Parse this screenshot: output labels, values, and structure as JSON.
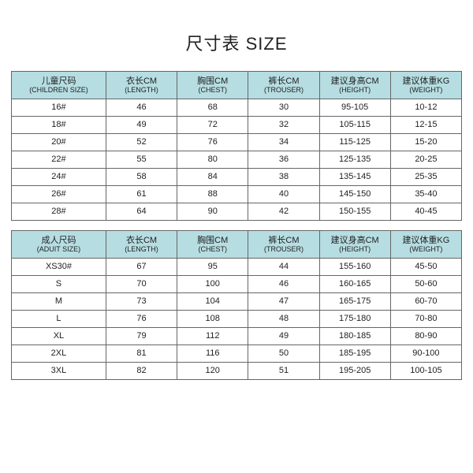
{
  "title": "尺寸表 SIZE",
  "header_bg": "#b6dde2",
  "border_color": "#666666",
  "columns": [
    {
      "cn": "儿童尺码",
      "en": "(CHILDREN SIZE)"
    },
    {
      "cn": "衣长CM",
      "en": "(LENGTH)"
    },
    {
      "cn": "胸围CM",
      "en": "(CHEST)"
    },
    {
      "cn": "裤长CM",
      "en": "(TROUSER)"
    },
    {
      "cn": "建议身高CM",
      "en": "(HEIGHT)"
    },
    {
      "cn": "建议体重KG",
      "en": "(WEIGHT)"
    }
  ],
  "columns2": [
    {
      "cn": "成人尺码",
      "en": "(ADUIT SIZE)"
    },
    {
      "cn": "衣长CM",
      "en": "(LENGTH)"
    },
    {
      "cn": "胸围CM",
      "en": "(CHEST)"
    },
    {
      "cn": "裤长CM",
      "en": "(TROUSER)"
    },
    {
      "cn": "建议身高CM",
      "en": "(HEIGHT)"
    },
    {
      "cn": "建议体重KG",
      "en": "(WEIGHT)"
    }
  ],
  "children_rows": [
    [
      "16#",
      "46",
      "68",
      "30",
      "95-105",
      "10-12"
    ],
    [
      "18#",
      "49",
      "72",
      "32",
      "105-115",
      "12-15"
    ],
    [
      "20#",
      "52",
      "76",
      "34",
      "115-125",
      "15-20"
    ],
    [
      "22#",
      "55",
      "80",
      "36",
      "125-135",
      "20-25"
    ],
    [
      "24#",
      "58",
      "84",
      "38",
      "135-145",
      "25-35"
    ],
    [
      "26#",
      "61",
      "88",
      "40",
      "145-150",
      "35-40"
    ],
    [
      "28#",
      "64",
      "90",
      "42",
      "150-155",
      "40-45"
    ]
  ],
  "adult_rows": [
    [
      "XS30#",
      "67",
      "95",
      "44",
      "155-160",
      "45-50"
    ],
    [
      "S",
      "70",
      "100",
      "46",
      "160-165",
      "50-60"
    ],
    [
      "M",
      "73",
      "104",
      "47",
      "165-175",
      "60-70"
    ],
    [
      "L",
      "76",
      "108",
      "48",
      "175-180",
      "70-80"
    ],
    [
      "XL",
      "79",
      "112",
      "49",
      "180-185",
      "80-90"
    ],
    [
      "2XL",
      "81",
      "116",
      "50",
      "185-195",
      "90-100"
    ],
    [
      "3XL",
      "82",
      "120",
      "51",
      "195-205",
      "100-105"
    ]
  ]
}
